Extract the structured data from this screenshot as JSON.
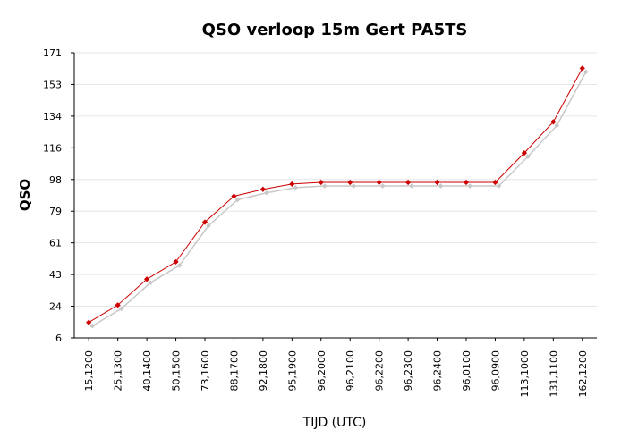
{
  "chart_data": {
    "type": "line",
    "title": "QSO verloop 15m Gert PA5TS",
    "xlabel": "TIJD (UTC)",
    "ylabel": "QSO",
    "categories": [
      "15,1200",
      "25,1300",
      "40,1400",
      "50,1500",
      "73,1600",
      "88,1700",
      "92,1800",
      "95,1900",
      "96,2000",
      "96,2100",
      "96,2200",
      "96,2300",
      "96,2400",
      "96,0100",
      "96,0900",
      "113,1000",
      "131,1100",
      "162,1200"
    ],
    "yticks": [
      "6",
      "24",
      "43",
      "61",
      "79",
      "98",
      "116",
      "134",
      "153",
      "171"
    ],
    "ylim": [
      6,
      171
    ],
    "grid": true,
    "legend": "none",
    "series": [
      {
        "values": [
          15,
          25,
          40,
          50,
          73,
          88,
          92,
          95,
          96,
          96,
          96,
          96,
          96,
          96,
          96,
          113,
          131,
          162
        ],
        "color": "#cc0000"
      }
    ],
    "shadow_color": "#c8c8c8"
  }
}
